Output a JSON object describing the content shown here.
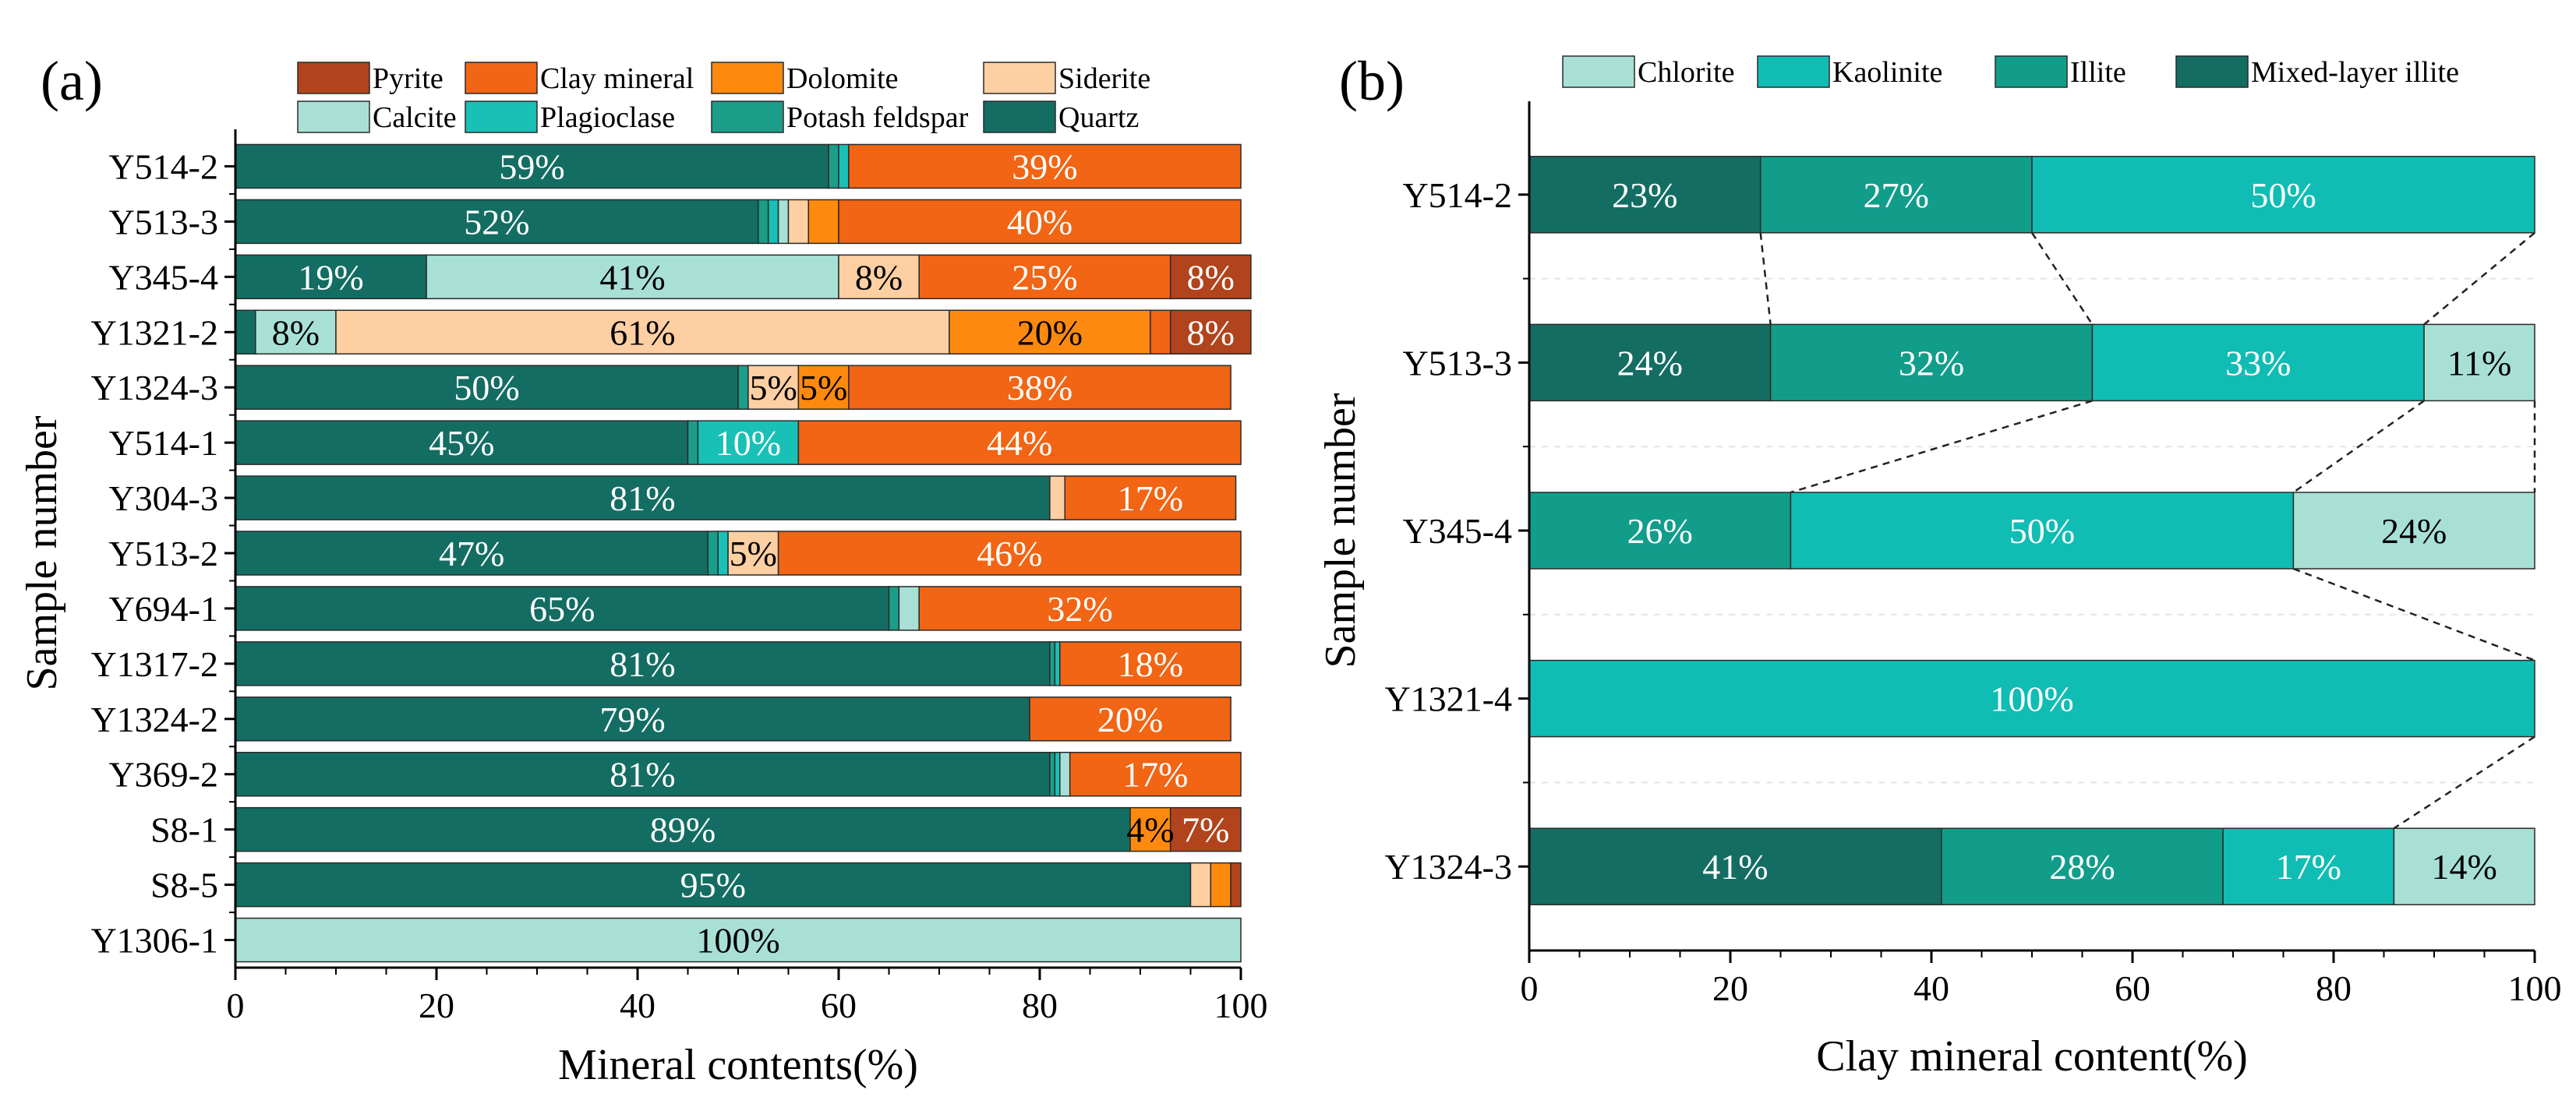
{
  "chart_data": [
    {
      "type": "bar",
      "orientation": "horizontal",
      "stacked": true,
      "panel_label": "(a)",
      "xlabel": "Mineral contents(%)",
      "ylabel": "Sample number",
      "xlim": [
        0,
        100
      ],
      "xticks": [
        "0",
        "20",
        "40",
        "60",
        "80",
        "100"
      ],
      "grid": false,
      "legend_position": "top",
      "categories": [
        "Y514-2",
        "Y513-3",
        "Y345-4",
        "Y1321-2",
        "Y1324-3",
        "Y514-1",
        "Y304-3",
        "Y513-2",
        "Y694-1",
        "Y1317-2",
        "Y1324-2",
        "Y369-2",
        "S8-1",
        "S8-5",
        "Y1306-1"
      ],
      "legend": [
        "Pyrite",
        "Clay mineral",
        "Dolomite",
        "Siderite",
        "Calcite",
        "Plagioclase",
        "Potash feldspar",
        "Quartz"
      ],
      "stack_order": [
        "Quartz",
        "Potash feldspar",
        "Plagioclase",
        "Calcite",
        "Siderite",
        "Dolomite",
        "Clay mineral",
        "Pyrite"
      ],
      "colors": {
        "Quartz": "#146d62",
        "Potash feldspar": "#1a9e8a",
        "Plagioclase": "#19c0b6",
        "Calcite": "#a8e0d6",
        "Siderite": "#fdcfa2",
        "Dolomite": "#fd8a0f",
        "Clay mineral": "#f16514",
        "Pyrite": "#b1441c"
      },
      "series": [
        {
          "name": "Quartz",
          "values": [
            59,
            52,
            19,
            2,
            50,
            45,
            81,
            47,
            65,
            81,
            79,
            81,
            89,
            95,
            0
          ]
        },
        {
          "name": "Potash feldspar",
          "values": [
            1,
            1,
            0,
            0,
            1,
            1,
            0,
            1,
            1,
            0.5,
            0,
            0.5,
            0,
            0,
            0
          ]
        },
        {
          "name": "Plagioclase",
          "values": [
            1,
            1,
            0,
            0,
            0,
            10,
            0,
            1,
            0,
            0.5,
            0,
            0.5,
            0,
            0,
            0
          ]
        },
        {
          "name": "Calcite",
          "values": [
            0,
            1,
            41,
            8,
            0,
            0,
            0,
            0,
            2,
            0,
            0,
            1,
            0,
            0,
            100
          ]
        },
        {
          "name": "Siderite",
          "values": [
            0,
            2,
            8,
            61,
            5,
            0,
            1.5,
            5,
            0,
            0,
            0,
            0,
            0,
            2,
            0
          ]
        },
        {
          "name": "Dolomite",
          "values": [
            0,
            3,
            0,
            20,
            5,
            0,
            0,
            0,
            0,
            0,
            0,
            0,
            4,
            2,
            0
          ]
        },
        {
          "name": "Clay mineral",
          "values": [
            39,
            40,
            25,
            2,
            38,
            44,
            17,
            46,
            32,
            18,
            20,
            17,
            0,
            0,
            0
          ]
        },
        {
          "name": "Pyrite",
          "values": [
            0,
            0,
            8,
            8,
            0,
            0,
            0,
            0,
            0,
            0,
            0,
            0,
            7,
            1,
            0
          ]
        }
      ],
      "data_labels": [
        {
          "category": "Y514-2",
          "series": "Quartz",
          "text": "59%"
        },
        {
          "category": "Y514-2",
          "series": "Clay mineral",
          "text": "39%"
        },
        {
          "category": "Y513-3",
          "series": "Quartz",
          "text": "52%"
        },
        {
          "category": "Y513-3",
          "series": "Clay mineral",
          "text": "40%"
        },
        {
          "category": "Y345-4",
          "series": "Quartz",
          "text": "19%"
        },
        {
          "category": "Y345-4",
          "series": "Calcite",
          "text": "41%"
        },
        {
          "category": "Y345-4",
          "series": "Siderite",
          "text": "8%"
        },
        {
          "category": "Y345-4",
          "series": "Clay mineral",
          "text": "25%"
        },
        {
          "category": "Y345-4",
          "series": "Pyrite",
          "text": "8%"
        },
        {
          "category": "Y1321-2",
          "series": "Calcite",
          "text": "8%"
        },
        {
          "category": "Y1321-2",
          "series": "Siderite",
          "text": "61%"
        },
        {
          "category": "Y1321-2",
          "series": "Dolomite",
          "text": "20%"
        },
        {
          "category": "Y1321-2",
          "series": "Pyrite",
          "text": "8%"
        },
        {
          "category": "Y1324-3",
          "series": "Quartz",
          "text": "50%"
        },
        {
          "category": "Y1324-3",
          "series": "Siderite",
          "text": "5%"
        },
        {
          "category": "Y1324-3",
          "series": "Dolomite",
          "text": "5%"
        },
        {
          "category": "Y1324-3",
          "series": "Clay mineral",
          "text": "38%"
        },
        {
          "category": "Y514-1",
          "series": "Quartz",
          "text": "45%"
        },
        {
          "category": "Y514-1",
          "series": "Plagioclase",
          "text": "10%"
        },
        {
          "category": "Y514-1",
          "series": "Clay mineral",
          "text": "44%"
        },
        {
          "category": "Y304-3",
          "series": "Quartz",
          "text": "81%"
        },
        {
          "category": "Y304-3",
          "series": "Clay mineral",
          "text": "17%"
        },
        {
          "category": "Y513-2",
          "series": "Quartz",
          "text": "47%"
        },
        {
          "category": "Y513-2",
          "series": "Siderite",
          "text": "5%"
        },
        {
          "category": "Y513-2",
          "series": "Clay mineral",
          "text": "46%"
        },
        {
          "category": "Y694-1",
          "series": "Quartz",
          "text": "65%"
        },
        {
          "category": "Y694-1",
          "series": "Clay mineral",
          "text": "32%"
        },
        {
          "category": "Y1317-2",
          "series": "Quartz",
          "text": "81%"
        },
        {
          "category": "Y1317-2",
          "series": "Clay mineral",
          "text": "18%"
        },
        {
          "category": "Y1324-2",
          "series": "Quartz",
          "text": "79%"
        },
        {
          "category": "Y1324-2",
          "series": "Clay mineral",
          "text": "20%"
        },
        {
          "category": "Y369-2",
          "series": "Quartz",
          "text": "81%"
        },
        {
          "category": "Y369-2",
          "series": "Clay mineral",
          "text": "17%"
        },
        {
          "category": "S8-1",
          "series": "Quartz",
          "text": "89%"
        },
        {
          "category": "S8-1",
          "series": "Dolomite",
          "text": "4%"
        },
        {
          "category": "S8-1",
          "series": "Pyrite",
          "text": "7%"
        },
        {
          "category": "S8-5",
          "series": "Quartz",
          "text": "95%"
        },
        {
          "category": "Y1306-1",
          "series": "Calcite",
          "text": "100%"
        }
      ]
    },
    {
      "type": "bar",
      "orientation": "horizontal",
      "stacked": true,
      "panel_label": "(b)",
      "xlabel": "Clay mineral content(%)",
      "ylabel": "Sample number",
      "xlim": [
        0,
        100
      ],
      "xticks": [
        "0",
        "20",
        "40",
        "60",
        "80",
        "100"
      ],
      "grid": true,
      "legend_position": "top",
      "categories": [
        "Y514-2",
        "Y513-3",
        "Y345-4",
        "Y1321-4",
        "Y1324-3"
      ],
      "legend": [
        "Chlorite",
        "Kaolinite",
        "Illite",
        "Mixed-layer illite"
      ],
      "stack_order": [
        "Mixed-layer illite",
        "Illite",
        "Kaolinite",
        "Chlorite"
      ],
      "colors": {
        "Mixed-layer illite": "#146d62",
        "Illite": "#129d8b",
        "Kaolinite": "#10bdb4",
        "Chlorite": "#a8e0d6"
      },
      "series": [
        {
          "name": "Mixed-layer illite",
          "values": [
            23,
            24,
            0,
            0,
            41
          ]
        },
        {
          "name": "Illite",
          "values": [
            27,
            32,
            26,
            0,
            28
          ]
        },
        {
          "name": "Kaolinite",
          "values": [
            50,
            33,
            50,
            100,
            17
          ]
        },
        {
          "name": "Chlorite",
          "values": [
            0,
            11,
            24,
            0,
            14
          ]
        }
      ],
      "data_labels": [
        {
          "category": "Y514-2",
          "series": "Mixed-layer illite",
          "text": "23%"
        },
        {
          "category": "Y514-2",
          "series": "Illite",
          "text": "27%"
        },
        {
          "category": "Y514-2",
          "series": "Kaolinite",
          "text": "50%"
        },
        {
          "category": "Y513-3",
          "series": "Mixed-layer illite",
          "text": "24%"
        },
        {
          "category": "Y513-3",
          "series": "Illite",
          "text": "32%"
        },
        {
          "category": "Y513-3",
          "series": "Kaolinite",
          "text": "33%"
        },
        {
          "category": "Y513-3",
          "series": "Chlorite",
          "text": "11%"
        },
        {
          "category": "Y345-4",
          "series": "Illite",
          "text": "26%"
        },
        {
          "category": "Y345-4",
          "series": "Kaolinite",
          "text": "50%"
        },
        {
          "category": "Y345-4",
          "series": "Chlorite",
          "text": "24%"
        },
        {
          "category": "Y1321-4",
          "series": "Kaolinite",
          "text": "100%"
        },
        {
          "category": "Y1324-3",
          "series": "Mixed-layer illite",
          "text": "41%"
        },
        {
          "category": "Y1324-3",
          "series": "Illite",
          "text": "28%"
        },
        {
          "category": "Y1324-3",
          "series": "Kaolinite",
          "text": "17%"
        },
        {
          "category": "Y1324-3",
          "series": "Chlorite",
          "text": "14%"
        }
      ]
    }
  ]
}
